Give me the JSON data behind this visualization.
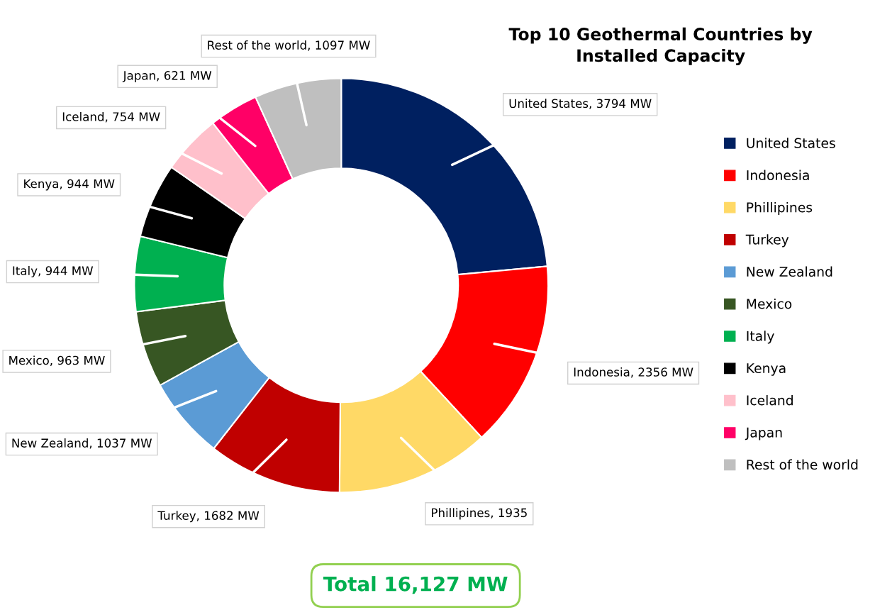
{
  "chart_data": {
    "type": "donut",
    "title": "Top 10 Geothermal Countries by\nInstalled Capacity",
    "categories": [
      "United States",
      "Indonesia",
      "Phillipines",
      "Turkey",
      "New Zealand",
      "Mexico",
      "Italy",
      "Kenya",
      "Iceland",
      "Japan",
      "Rest of the world"
    ],
    "values": [
      3794,
      2356,
      1935,
      1682,
      1037,
      963,
      944,
      944,
      754,
      621,
      1097
    ],
    "colors": [
      "#002060",
      "#ff0000",
      "#ffd966",
      "#c00000",
      "#5b9bd5",
      "#375623",
      "#00b050",
      "#000000",
      "#ffc0cb",
      "#ff0066",
      "#bfbfbf"
    ],
    "value_labels": [
      "United States, 3794 MW",
      "Indonesia, 2356 MW",
      "Phillipines, 1935",
      "Turkey, 1682 MW",
      "New Zealand, 1037 MW",
      "Mexico, 963 MW",
      "Italy, 944 MW",
      "Kenya, 944 MW",
      "Iceland, 754 MW",
      "Japan, 621 MW",
      "Rest of the world, 1097 MW"
    ],
    "annotations": [
      "Total 16,127 MW"
    ],
    "legend": "right"
  }
}
